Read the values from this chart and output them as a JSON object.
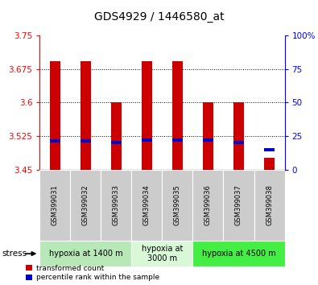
{
  "title": "GDS4929 / 1446580_at",
  "samples": [
    "GSM399031",
    "GSM399032",
    "GSM399033",
    "GSM399034",
    "GSM399035",
    "GSM399036",
    "GSM399037",
    "GSM399038"
  ],
  "red_values": [
    3.692,
    3.692,
    3.6,
    3.692,
    3.692,
    3.6,
    3.6,
    3.477
  ],
  "blue_values": [
    3.515,
    3.515,
    3.51,
    3.516,
    3.516,
    3.516,
    3.51,
    3.495
  ],
  "base_value": 3.45,
  "ylim_min": 3.45,
  "ylim_max": 3.75,
  "yticks_red": [
    3.45,
    3.525,
    3.6,
    3.675,
    3.75
  ],
  "yticks_blue": [
    0,
    25,
    50,
    75,
    100
  ],
  "grid_lines": [
    3.525,
    3.6,
    3.675
  ],
  "groups": [
    {
      "label": "hypoxia at 1400 m",
      "start": 0,
      "end": 3,
      "color": "#b8e8b8"
    },
    {
      "label": "hypoxia at\n3000 m",
      "start": 3,
      "end": 5,
      "color": "#d8f8d8"
    },
    {
      "label": "hypoxia at 4500 m",
      "start": 5,
      "end": 8,
      "color": "#44ee44"
    }
  ],
  "bar_width": 0.35,
  "red_color": "#cc0000",
  "blue_color": "#0000cc",
  "sample_bg_color": "#cccccc",
  "title_fontsize": 10,
  "tick_fontsize": 7.5,
  "sample_fontsize": 6,
  "group_fontsize": 7,
  "legend_fontsize": 6.5,
  "stress_label": "stress",
  "legend_items": [
    "transformed count",
    "percentile rank within the sample"
  ]
}
